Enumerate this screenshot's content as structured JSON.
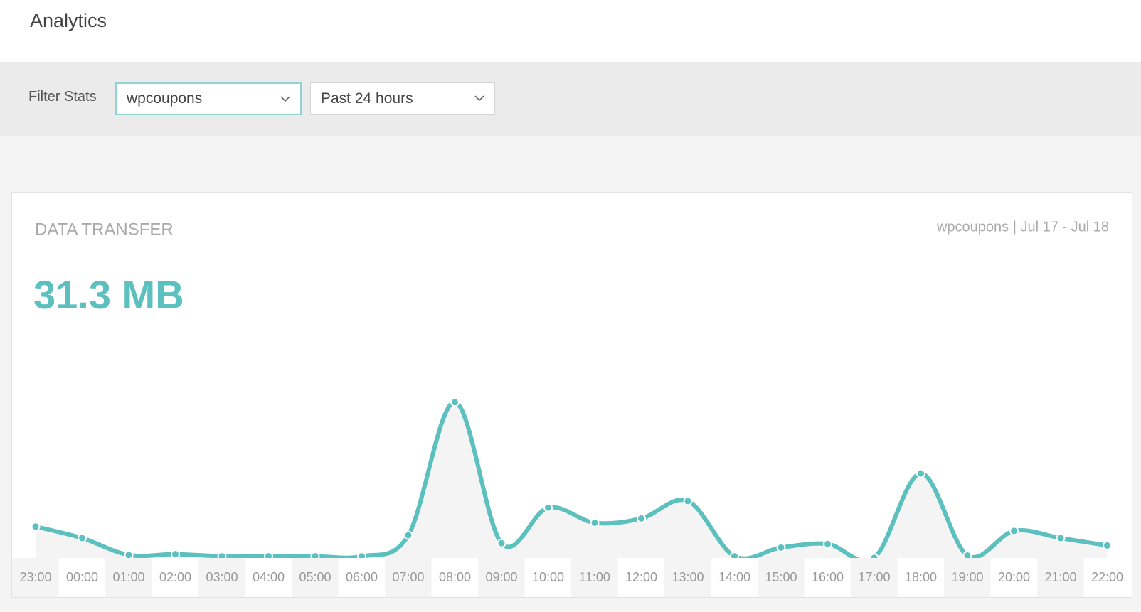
{
  "header": {
    "title": "Analytics"
  },
  "filter": {
    "label": "Filter Stats",
    "site": "wpcoupons",
    "period": "Past 24 hours"
  },
  "chart_data": {
    "type": "line",
    "title": "DATA TRANSFER",
    "subtitle": "wpcoupons | Jul 17 - Jul 18",
    "total": "31.3 MB",
    "categories": [
      "23:00",
      "00:00",
      "01:00",
      "02:00",
      "03:00",
      "04:00",
      "05:00",
      "06:00",
      "07:00",
      "08:00",
      "09:00",
      "10:00",
      "11:00",
      "12:00",
      "13:00",
      "14:00",
      "15:00",
      "16:00",
      "17:00",
      "18:00",
      "19:00",
      "20:00",
      "21:00",
      "22:00"
    ],
    "series": [
      {
        "color": "#5bc0be",
        "values": [
          21.5,
          15.4,
          6.5,
          6.9,
          5.8,
          5.8,
          5.8,
          5.8,
          16.9,
          87.3,
          12.7,
          31.5,
          23.5,
          25.8,
          35,
          5.8,
          10.4,
          12.3,
          5,
          49.6,
          6.2,
          19.2,
          15.4,
          11.5
        ]
      }
    ],
    "ylim": [
      0,
      100
    ]
  }
}
